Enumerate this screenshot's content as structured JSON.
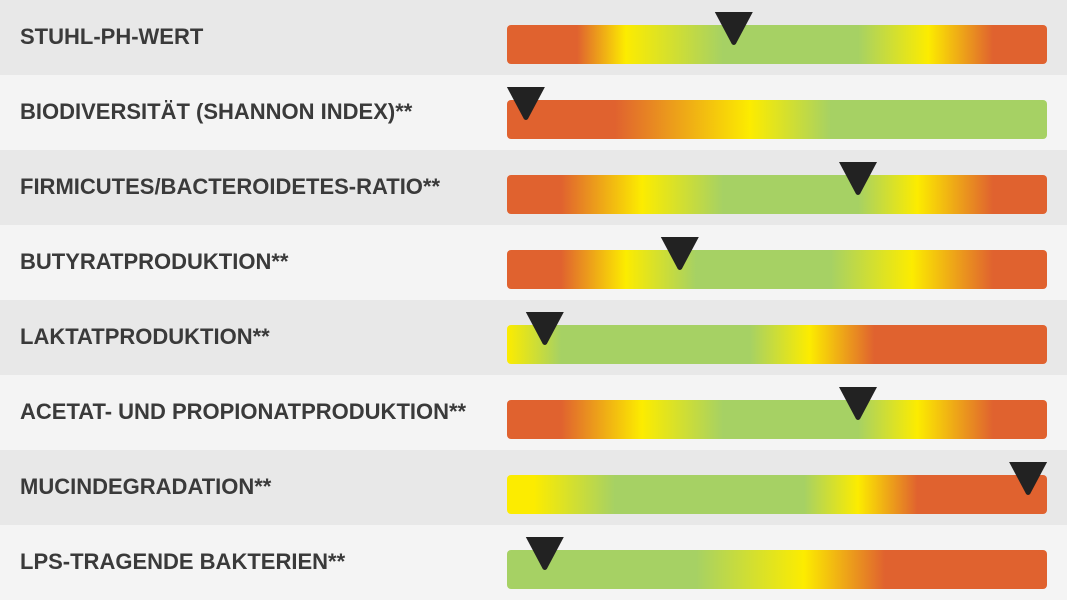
{
  "scale": {
    "min": 0,
    "max": 100
  },
  "rows": [
    {
      "label": "STUHL-PH-WERT",
      "marker": 42,
      "gradient": [
        {
          "at": 0,
          "color": "#e0622f"
        },
        {
          "at": 13,
          "color": "#e0622f"
        },
        {
          "at": 22,
          "color": "#fcec00"
        },
        {
          "at": 40,
          "color": "#a6d164"
        },
        {
          "at": 65,
          "color": "#a6d164"
        },
        {
          "at": 78,
          "color": "#fcec00"
        },
        {
          "at": 90,
          "color": "#e0622f"
        },
        {
          "at": 100,
          "color": "#e0622f"
        }
      ]
    },
    {
      "label": "BIODIVERSITÄT (SHANNON INDEX)**",
      "marker": 3.5,
      "gradient": [
        {
          "at": 0,
          "color": "#e0622f"
        },
        {
          "at": 20,
          "color": "#e0622f"
        },
        {
          "at": 45,
          "color": "#fcec00"
        },
        {
          "at": 60,
          "color": "#a6d164"
        },
        {
          "at": 100,
          "color": "#a6d164"
        }
      ]
    },
    {
      "label": "FIRMICUTES/BACTEROIDETES-RATIO**",
      "marker": 65,
      "gradient": [
        {
          "at": 0,
          "color": "#e0622f"
        },
        {
          "at": 10,
          "color": "#e0622f"
        },
        {
          "at": 25,
          "color": "#fcec00"
        },
        {
          "at": 40,
          "color": "#a6d164"
        },
        {
          "at": 65,
          "color": "#a6d164"
        },
        {
          "at": 76,
          "color": "#fcec00"
        },
        {
          "at": 90,
          "color": "#e0622f"
        },
        {
          "at": 100,
          "color": "#e0622f"
        }
      ]
    },
    {
      "label": "BUTYRATPRODUKTION**",
      "marker": 32,
      "gradient": [
        {
          "at": 0,
          "color": "#e0622f"
        },
        {
          "at": 10,
          "color": "#e0622f"
        },
        {
          "at": 22,
          "color": "#fcec00"
        },
        {
          "at": 35,
          "color": "#a6d164"
        },
        {
          "at": 60,
          "color": "#a6d164"
        },
        {
          "at": 75,
          "color": "#fcec00"
        },
        {
          "at": 90,
          "color": "#e0622f"
        },
        {
          "at": 100,
          "color": "#e0622f"
        }
      ]
    },
    {
      "label": "LAKTATPRODUKTION**",
      "marker": 7,
      "gradient": [
        {
          "at": 0,
          "color": "#fcec00"
        },
        {
          "at": 10,
          "color": "#a6d164"
        },
        {
          "at": 45,
          "color": "#a6d164"
        },
        {
          "at": 56,
          "color": "#fcec00"
        },
        {
          "at": 68,
          "color": "#e0622f"
        },
        {
          "at": 100,
          "color": "#e0622f"
        }
      ]
    },
    {
      "label": "ACETAT- UND PROPIONATPRODUKTION**",
      "marker": 65,
      "gradient": [
        {
          "at": 0,
          "color": "#e0622f"
        },
        {
          "at": 10,
          "color": "#e0622f"
        },
        {
          "at": 25,
          "color": "#fcec00"
        },
        {
          "at": 40,
          "color": "#a6d164"
        },
        {
          "at": 65,
          "color": "#a6d164"
        },
        {
          "at": 76,
          "color": "#fcec00"
        },
        {
          "at": 90,
          "color": "#e0622f"
        },
        {
          "at": 100,
          "color": "#e0622f"
        }
      ]
    },
    {
      "label": "MUCINDEGRADATION**",
      "marker": 96.5,
      "gradient": [
        {
          "at": 0,
          "color": "#fcec00"
        },
        {
          "at": 5,
          "color": "#fcec00"
        },
        {
          "at": 20,
          "color": "#a6d164"
        },
        {
          "at": 55,
          "color": "#a6d164"
        },
        {
          "at": 65,
          "color": "#fcec00"
        },
        {
          "at": 76,
          "color": "#e0622f"
        },
        {
          "at": 100,
          "color": "#e0622f"
        }
      ]
    },
    {
      "label": "LPS-TRAGENDE BAKTERIEN**",
      "marker": 7,
      "gradient": [
        {
          "at": 0,
          "color": "#a6d164"
        },
        {
          "at": 35,
          "color": "#a6d164"
        },
        {
          "at": 55,
          "color": "#fcec00"
        },
        {
          "at": 70,
          "color": "#e0622f"
        },
        {
          "at": 100,
          "color": "#e0622f"
        }
      ]
    }
  ]
}
